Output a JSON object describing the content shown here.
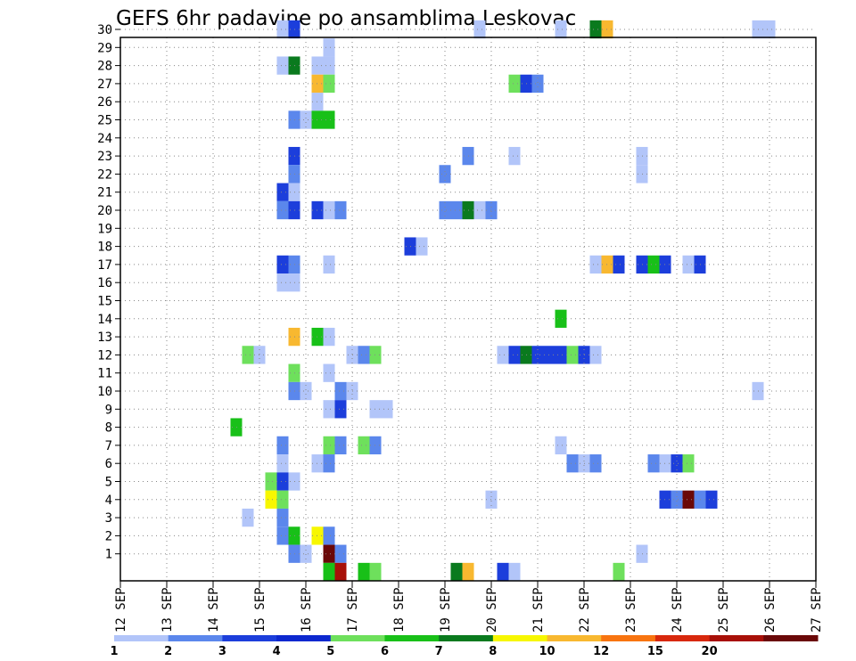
{
  "chart_data": {
    "type": "heatmap",
    "title": "GEFS 6hr padavine po ansamblima Leskovac",
    "x_ticks": [
      "12 SEP",
      "13 SEP",
      "14 SEP",
      "15 SEP",
      "16 SEP",
      "17 SEP",
      "18 SEP",
      "19 SEP",
      "20 SEP",
      "21 SEP",
      "22 SEP",
      "23 SEP",
      "24 SEP",
      "25 SEP",
      "26 SEP",
      "27 SEP"
    ],
    "x_step": "6hr",
    "x_steps_per_day": 4,
    "y_ticks": [
      1,
      2,
      3,
      4,
      5,
      6,
      7,
      8,
      9,
      10,
      11,
      12,
      13,
      14,
      15,
      16,
      17,
      18,
      19,
      20,
      21,
      22,
      23,
      24,
      25,
      26,
      27,
      28,
      29,
      30
    ],
    "ylim": [
      0,
      30
    ],
    "grid": true,
    "legend": {
      "placement": "bottom",
      "labels": [
        "1",
        "2",
        "3",
        "4",
        "5",
        "6",
        "7",
        "8",
        "10",
        "12",
        "15",
        "20"
      ],
      "colors": [
        "#b2c5f9",
        "#5b87ec",
        "#1c3edb",
        "#0c28cf",
        "#6ee05c",
        "#18c018",
        "#0a7a1e",
        "#f7f700",
        "#f8b830",
        "#f87410",
        "#d8280c",
        "#a81008",
        "#6a0808"
      ]
    },
    "cells": [
      {
        "x": "15 SEP 18h",
        "member": 30,
        "level": 1
      },
      {
        "x": "16 SEP 00h",
        "member": 30,
        "level": 3
      },
      {
        "x": "20 SEP 00h",
        "member": 30,
        "level": 1
      },
      {
        "x": "21 SEP 18h",
        "member": 30,
        "level": 1
      },
      {
        "x": "22 SEP 12h",
        "member": 30,
        "level": 7
      },
      {
        "x": "22 SEP 18h",
        "member": 30,
        "level": 9
      },
      {
        "x": "26 SEP 00h",
        "member": 30,
        "level": 1
      },
      {
        "x": "26 SEP 06h",
        "member": 30,
        "level": 1
      },
      {
        "x": "16 SEP 18h",
        "member": 29,
        "level": 1
      },
      {
        "x": "15 SEP 18h",
        "member": 28,
        "level": 1
      },
      {
        "x": "16 SEP 00h",
        "member": 28,
        "level": 7
      },
      {
        "x": "16 SEP 12h",
        "member": 28,
        "level": 1
      },
      {
        "x": "16 SEP 18h",
        "member": 28,
        "level": 1
      },
      {
        "x": "16 SEP 12h",
        "member": 27,
        "level": 9
      },
      {
        "x": "16 SEP 18h",
        "member": 27,
        "level": 5
      },
      {
        "x": "20 SEP 18h",
        "member": 27,
        "level": 5
      },
      {
        "x": "21 SEP 00h",
        "member": 27,
        "level": 3
      },
      {
        "x": "21 SEP 06h",
        "member": 27,
        "level": 2
      },
      {
        "x": "16 SEP 12h",
        "member": 26,
        "level": 1
      },
      {
        "x": "16 SEP 00h",
        "member": 25,
        "level": 2
      },
      {
        "x": "16 SEP 06h",
        "member": 25,
        "level": 1
      },
      {
        "x": "16 SEP 12h",
        "member": 25,
        "level": 6
      },
      {
        "x": "16 SEP 18h",
        "member": 25,
        "level": 6
      },
      {
        "x": "16 SEP 00h",
        "member": 23,
        "level": 3
      },
      {
        "x": "19 SEP 18h",
        "member": 23,
        "level": 2
      },
      {
        "x": "20 SEP 18h",
        "member": 23,
        "level": 1
      },
      {
        "x": "23 SEP 12h",
        "member": 23,
        "level": 1
      },
      {
        "x": "16 SEP 00h",
        "member": 22,
        "level": 2
      },
      {
        "x": "19 SEP 06h",
        "member": 22,
        "level": 2
      },
      {
        "x": "23 SEP 12h",
        "member": 22,
        "level": 1
      },
      {
        "x": "15 SEP 18h",
        "member": 21,
        "level": 3
      },
      {
        "x": "16 SEP 00h",
        "member": 21,
        "level": 1
      },
      {
        "x": "15 SEP 18h",
        "member": 20,
        "level": 2
      },
      {
        "x": "16 SEP 00h",
        "member": 20,
        "level": 3
      },
      {
        "x": "16 SEP 12h",
        "member": 20,
        "level": 3
      },
      {
        "x": "16 SEP 18h",
        "member": 20,
        "level": 1
      },
      {
        "x": "17 SEP 00h",
        "member": 20,
        "level": 2
      },
      {
        "x": "19 SEP 06h",
        "member": 20,
        "level": 2
      },
      {
        "x": "19 SEP 12h",
        "member": 20,
        "level": 2
      },
      {
        "x": "19 SEP 18h",
        "member": 20,
        "level": 7
      },
      {
        "x": "20 SEP 00h",
        "member": 20,
        "level": 1
      },
      {
        "x": "20 SEP 06h",
        "member": 20,
        "level": 2
      },
      {
        "x": "18 SEP 12h",
        "member": 18,
        "level": 3
      },
      {
        "x": "18 SEP 18h",
        "member": 18,
        "level": 1
      },
      {
        "x": "15 SEP 18h",
        "member": 17,
        "level": 3
      },
      {
        "x": "16 SEP 00h",
        "member": 17,
        "level": 2
      },
      {
        "x": "16 SEP 18h",
        "member": 17,
        "level": 1
      },
      {
        "x": "22 SEP 12h",
        "member": 17,
        "level": 1
      },
      {
        "x": "22 SEP 18h",
        "member": 17,
        "level": 9
      },
      {
        "x": "23 SEP 00h",
        "member": 17,
        "level": 3
      },
      {
        "x": "23 SEP 12h",
        "member": 17,
        "level": 3
      },
      {
        "x": "23 SEP 18h",
        "member": 17,
        "level": 6
      },
      {
        "x": "24 SEP 00h",
        "member": 17,
        "level": 3
      },
      {
        "x": "24 SEP 12h",
        "member": 17,
        "level": 1
      },
      {
        "x": "24 SEP 18h",
        "member": 17,
        "level": 3
      },
      {
        "x": "15 SEP 18h",
        "member": 16,
        "level": 1
      },
      {
        "x": "16 SEP 00h",
        "member": 16,
        "level": 1
      },
      {
        "x": "21 SEP 18h",
        "member": 14,
        "level": 6
      },
      {
        "x": "16 SEP 00h",
        "member": 13,
        "level": 9
      },
      {
        "x": "16 SEP 12h",
        "member": 13,
        "level": 6
      },
      {
        "x": "16 SEP 18h",
        "member": 13,
        "level": 1
      },
      {
        "x": "15 SEP 00h",
        "member": 12,
        "level": 5
      },
      {
        "x": "15 SEP 06h",
        "member": 12,
        "level": 1
      },
      {
        "x": "17 SEP 06h",
        "member": 12,
        "level": 1
      },
      {
        "x": "17 SEP 12h",
        "member": 12,
        "level": 2
      },
      {
        "x": "17 SEP 18h",
        "member": 12,
        "level": 5
      },
      {
        "x": "20 SEP 12h",
        "member": 12,
        "level": 1
      },
      {
        "x": "20 SEP 18h",
        "member": 12,
        "level": 3
      },
      {
        "x": "21 SEP 00h",
        "member": 12,
        "level": 7
      },
      {
        "x": "21 SEP 06h",
        "member": 12,
        "level": 3
      },
      {
        "x": "21 SEP 12h",
        "member": 12,
        "level": 3
      },
      {
        "x": "21 SEP 18h",
        "member": 12,
        "level": 3
      },
      {
        "x": "22 SEP 00h",
        "member": 12,
        "level": 5
      },
      {
        "x": "22 SEP 06h",
        "member": 12,
        "level": 3
      },
      {
        "x": "22 SEP 12h",
        "member": 12,
        "level": 1
      },
      {
        "x": "16 SEP 00h",
        "member": 11,
        "level": 5
      },
      {
        "x": "16 SEP 18h",
        "member": 11,
        "level": 1
      },
      {
        "x": "16 SEP 00h",
        "member": 10,
        "level": 2
      },
      {
        "x": "16 SEP 06h",
        "member": 10,
        "level": 1
      },
      {
        "x": "17 SEP 00h",
        "member": 10,
        "level": 2
      },
      {
        "x": "17 SEP 06h",
        "member": 10,
        "level": 1
      },
      {
        "x": "26 SEP 00h",
        "member": 10,
        "level": 1
      },
      {
        "x": "16 SEP 18h",
        "member": 9,
        "level": 1
      },
      {
        "x": "17 SEP 00h",
        "member": 9,
        "level": 3
      },
      {
        "x": "17 SEP 18h",
        "member": 9,
        "level": 1
      },
      {
        "x": "18 SEP 00h",
        "member": 9,
        "level": 1
      },
      {
        "x": "14 SEP 18h",
        "member": 8,
        "level": 6
      },
      {
        "x": "15 SEP 18h",
        "member": 7,
        "level": 2
      },
      {
        "x": "16 SEP 18h",
        "member": 7,
        "level": 5
      },
      {
        "x": "17 SEP 00h",
        "member": 7,
        "level": 2
      },
      {
        "x": "17 SEP 12h",
        "member": 7,
        "level": 5
      },
      {
        "x": "17 SEP 18h",
        "member": 7,
        "level": 2
      },
      {
        "x": "21 SEP 18h",
        "member": 7,
        "level": 1
      },
      {
        "x": "15 SEP 18h",
        "member": 6,
        "level": 1
      },
      {
        "x": "16 SEP 12h",
        "member": 6,
        "level": 1
      },
      {
        "x": "16 SEP 18h",
        "member": 6,
        "level": 2
      },
      {
        "x": "22 SEP 00h",
        "member": 6,
        "level": 2
      },
      {
        "x": "22 SEP 06h",
        "member": 6,
        "level": 1
      },
      {
        "x": "22 SEP 12h",
        "member": 6,
        "level": 2
      },
      {
        "x": "23 SEP 18h",
        "member": 6,
        "level": 2
      },
      {
        "x": "24 SEP 00h",
        "member": 6,
        "level": 1
      },
      {
        "x": "24 SEP 06h",
        "member": 6,
        "level": 3
      },
      {
        "x": "24 SEP 12h",
        "member": 6,
        "level": 5
      },
      {
        "x": "15 SEP 12h",
        "member": 5,
        "level": 5
      },
      {
        "x": "15 SEP 18h",
        "member": 5,
        "level": 3
      },
      {
        "x": "16 SEP 00h",
        "member": 5,
        "level": 1
      },
      {
        "x": "15 SEP 12h",
        "member": 4,
        "level": 8
      },
      {
        "x": "15 SEP 18h",
        "member": 4,
        "level": 5
      },
      {
        "x": "20 SEP 06h",
        "member": 4,
        "level": 1
      },
      {
        "x": "24 SEP 00h",
        "member": 4,
        "level": 3
      },
      {
        "x": "24 SEP 06h",
        "member": 4,
        "level": 2
      },
      {
        "x": "24 SEP 12h",
        "member": 4,
        "level": 13
      },
      {
        "x": "24 SEP 18h",
        "member": 4,
        "level": 2
      },
      {
        "x": "25 SEP 00h",
        "member": 4,
        "level": 3
      },
      {
        "x": "15 SEP 00h",
        "member": 3,
        "level": 1
      },
      {
        "x": "15 SEP 18h",
        "member": 3,
        "level": 2
      },
      {
        "x": "15 SEP 18h",
        "member": 2,
        "level": 2
      },
      {
        "x": "16 SEP 00h",
        "member": 2,
        "level": 6
      },
      {
        "x": "16 SEP 12h",
        "member": 2,
        "level": 8
      },
      {
        "x": "16 SEP 18h",
        "member": 2,
        "level": 2
      },
      {
        "x": "16 SEP 00h",
        "member": 1,
        "level": 2
      },
      {
        "x": "16 SEP 06h",
        "member": 1,
        "level": 1
      },
      {
        "x": "16 SEP 18h",
        "member": 1,
        "level": 13
      },
      {
        "x": "17 SEP 00h",
        "member": 1,
        "level": 2
      },
      {
        "x": "23 SEP 12h",
        "member": 1,
        "level": 1
      },
      {
        "x": "16 SEP 18h",
        "member": 0,
        "level": 6
      },
      {
        "x": "17 SEP 00h",
        "member": 0,
        "level": 12
      },
      {
        "x": "17 SEP 12h",
        "member": 0,
        "level": 6
      },
      {
        "x": "17 SEP 18h",
        "member": 0,
        "level": 5
      },
      {
        "x": "19 SEP 12h",
        "member": 0,
        "level": 7
      },
      {
        "x": "19 SEP 18h",
        "member": 0,
        "level": 9
      },
      {
        "x": "20 SEP 12h",
        "member": 0,
        "level": 3
      },
      {
        "x": "20 SEP 18h",
        "member": 0,
        "level": 1
      },
      {
        "x": "23 SEP 00h",
        "member": 0,
        "level": 5
      }
    ]
  }
}
